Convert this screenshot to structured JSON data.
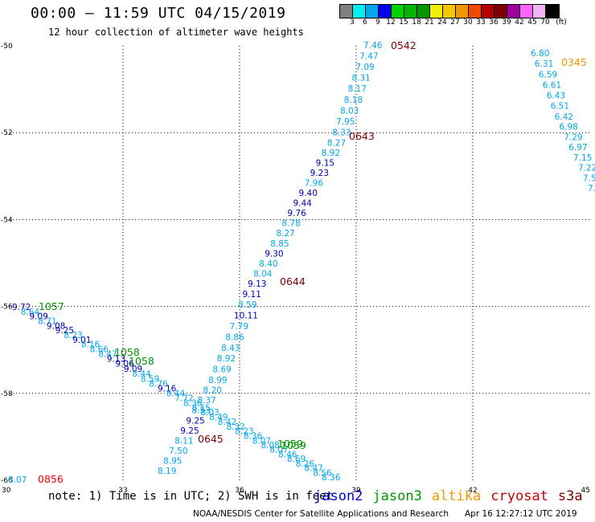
{
  "header": {
    "title": "00:00 – 11:59 UTC 04/15/2019",
    "subtitle": "12 hour collection of altimeter wave heights"
  },
  "colorbar": {
    "colors": [
      "#7f7f7f",
      "#00f2f2",
      "#00a7ef",
      "#0000f2",
      "#00d200",
      "#00b400",
      "#009600",
      "#f2f200",
      "#f2c800",
      "#f29600",
      "#f24b00",
      "#b40000",
      "#7f0000",
      "#a000a0",
      "#ff64ff",
      "#f2b4f2",
      "#000000"
    ],
    "labels": [
      "3",
      "6",
      "9",
      "12",
      "15",
      "18",
      "21",
      "24",
      "27",
      "30",
      "33",
      "36",
      "39",
      "42",
      "45",
      "70",
      "(ft)"
    ]
  },
  "map": {
    "x_ticks": [
      "30",
      "33",
      "36",
      "39",
      "42",
      "45"
    ],
    "y_ticks": [
      "-50",
      "-52",
      "-54",
      "-56",
      "-58",
      "-60"
    ],
    "track_labels": [
      {
        "text": "0542",
        "color": "#7f0000"
      },
      {
        "text": "0345",
        "color": "#f29600"
      },
      {
        "text": "0643",
        "color": "#7f0000"
      },
      {
        "text": "0644",
        "color": "#7f0000"
      },
      {
        "text": "1057",
        "color": "#009600"
      },
      {
        "text": "1058",
        "color": "#009600"
      },
      {
        "text": "1058",
        "color": "#009600"
      },
      {
        "text": "0645",
        "color": "#7f0000"
      },
      {
        "text": "1059",
        "color": "#009600"
      },
      {
        "text": "1059",
        "color": "#009600"
      },
      {
        "text": "0856",
        "color": "#f20000"
      }
    ],
    "values_track_a": [
      "7.46",
      "7.47",
      "7.09",
      "8.31",
      "8.17",
      "8.18",
      "8.03",
      "7.95",
      "8.33",
      "8.27",
      "8.92",
      "9.15",
      "9.23",
      "7.96",
      "9.40",
      "9.44",
      "9.76",
      "8.78",
      "8.27",
      "8.85",
      "9.30",
      "8.40",
      "8.04",
      "9.13",
      "9.11",
      "8.59",
      "10.11",
      "7.79",
      "8.86",
      "8.43",
      "8.92",
      "8.69",
      "8.99",
      "8.20",
      "8.37",
      "8.53",
      "9.25",
      "9.25",
      "8.11",
      "7.50",
      "8.95",
      "8.19"
    ],
    "values_track_b": [
      "6.80",
      "6.31",
      "6.59",
      "6.61",
      "6.43",
      "6.51",
      "6.42",
      "6.98",
      "7.29",
      "6.97",
      "7.15",
      "7.22",
      "7.5",
      "7."
    ],
    "values_track_c": [
      "9.72",
      "8.64",
      "9.09",
      "8.71",
      "9.08",
      "9.25",
      "8.23",
      "9.01",
      "8.16",
      "8.66",
      "8.47",
      "9.13",
      "9.06",
      "9.09",
      "8.44",
      "8.59",
      "8.76",
      "9.16",
      "8.44",
      "7.72",
      "8.36",
      "8.15",
      "8.03",
      "8.49",
      "8.42",
      "8.32",
      "8.23",
      "8.36",
      "8.07",
      "8.08",
      "8.07",
      "8.46",
      "8.69",
      "8.26",
      "8.47",
      "8.56",
      "8.36"
    ],
    "values_track_d": [
      "8.07"
    ]
  },
  "legend": {
    "note": "note: 1) Time is in UTC; 2) SWH is in feet",
    "missions": [
      {
        "name": "jason2",
        "color": "#0000c8"
      },
      {
        "name": "jason3",
        "color": "#009600"
      },
      {
        "name": "altika",
        "color": "#f29600"
      },
      {
        "name": "cryosat",
        "color": "#c80000"
      },
      {
        "name": "s3a",
        "color": "#7f0000"
      }
    ]
  },
  "footer": {
    "credit": "NOAA/NESDIS Center for Satellite Applications and Research",
    "timestamp": "Apr 16 12:27:12 UTC 2019"
  }
}
